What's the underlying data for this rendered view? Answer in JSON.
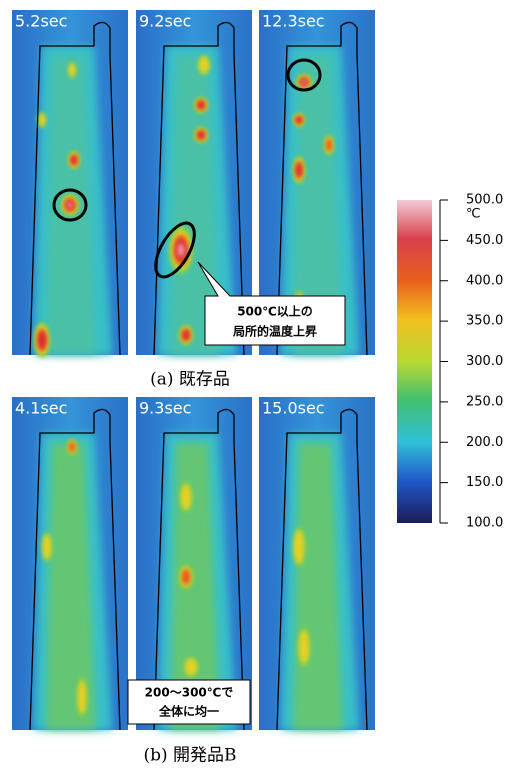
{
  "rows": [
    {
      "panels": [
        "5.2sec",
        "9.2sec",
        "12.3sec"
      ],
      "caption": "(a)  既存品",
      "callout": [
        "500℃以上の",
        "局所的温度上昇"
      ]
    },
    {
      "panels": [
        "4.1sec",
        "9.3sec",
        "15.0sec"
      ],
      "caption": "(b)  開発品B",
      "callout": [
        "200〜300℃で",
        "全体に均一"
      ]
    }
  ],
  "colorbar": {
    "unit": "℃",
    "lim": [
      100,
      500
    ],
    "ticks": [
      {
        "value": 500,
        "label": "500.0"
      },
      {
        "value": 450,
        "label": "450.0"
      },
      {
        "value": 400,
        "label": "400.0"
      },
      {
        "value": 350,
        "label": "350.0"
      },
      {
        "value": 300,
        "label": "300.0"
      },
      {
        "value": 250,
        "label": "250.0"
      },
      {
        "value": 200,
        "label": "200.0"
      },
      {
        "value": 150,
        "label": "150.0"
      },
      {
        "value": 100,
        "label": "100.0"
      }
    ]
  }
}
